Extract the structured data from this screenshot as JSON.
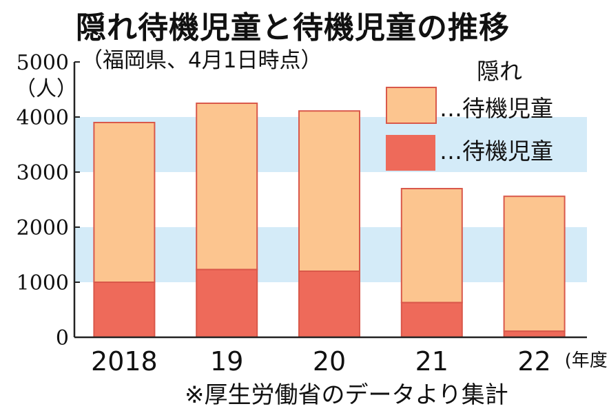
{
  "title": "隠れ待機児童と待機児童の推移",
  "subtitle": "（福岡県、4月1日時点）",
  "unit_label": "（人）",
  "source_note": "※厚生労働省のデータより集計",
  "colors": {
    "hidden": "#fcc58f",
    "waiting": "#ee6a5a",
    "bar_stroke": "#d9584a",
    "band": "#d4ebf8",
    "axis": "#222222"
  },
  "legend": {
    "hidden_line1": "隠れ",
    "hidden_line2": "…待機児童",
    "waiting": "…待機児童"
  },
  "chart_data": {
    "type": "bar",
    "stacked": true,
    "categories": [
      "2018",
      "19",
      "20",
      "21",
      "22"
    ],
    "x_suffix": "(年度)",
    "ylim": [
      0,
      5000
    ],
    "yticks": [
      0,
      1000,
      2000,
      3000,
      4000,
      5000
    ],
    "series": [
      {
        "key": "waiting",
        "name": "待機児童",
        "values": [
          1000,
          1230,
          1200,
          630,
          110
        ]
      },
      {
        "key": "hidden",
        "name": "隠れ待機児童",
        "values": [
          2900,
          3020,
          2910,
          2070,
          2450
        ]
      }
    ],
    "legend_position": "top-right"
  }
}
